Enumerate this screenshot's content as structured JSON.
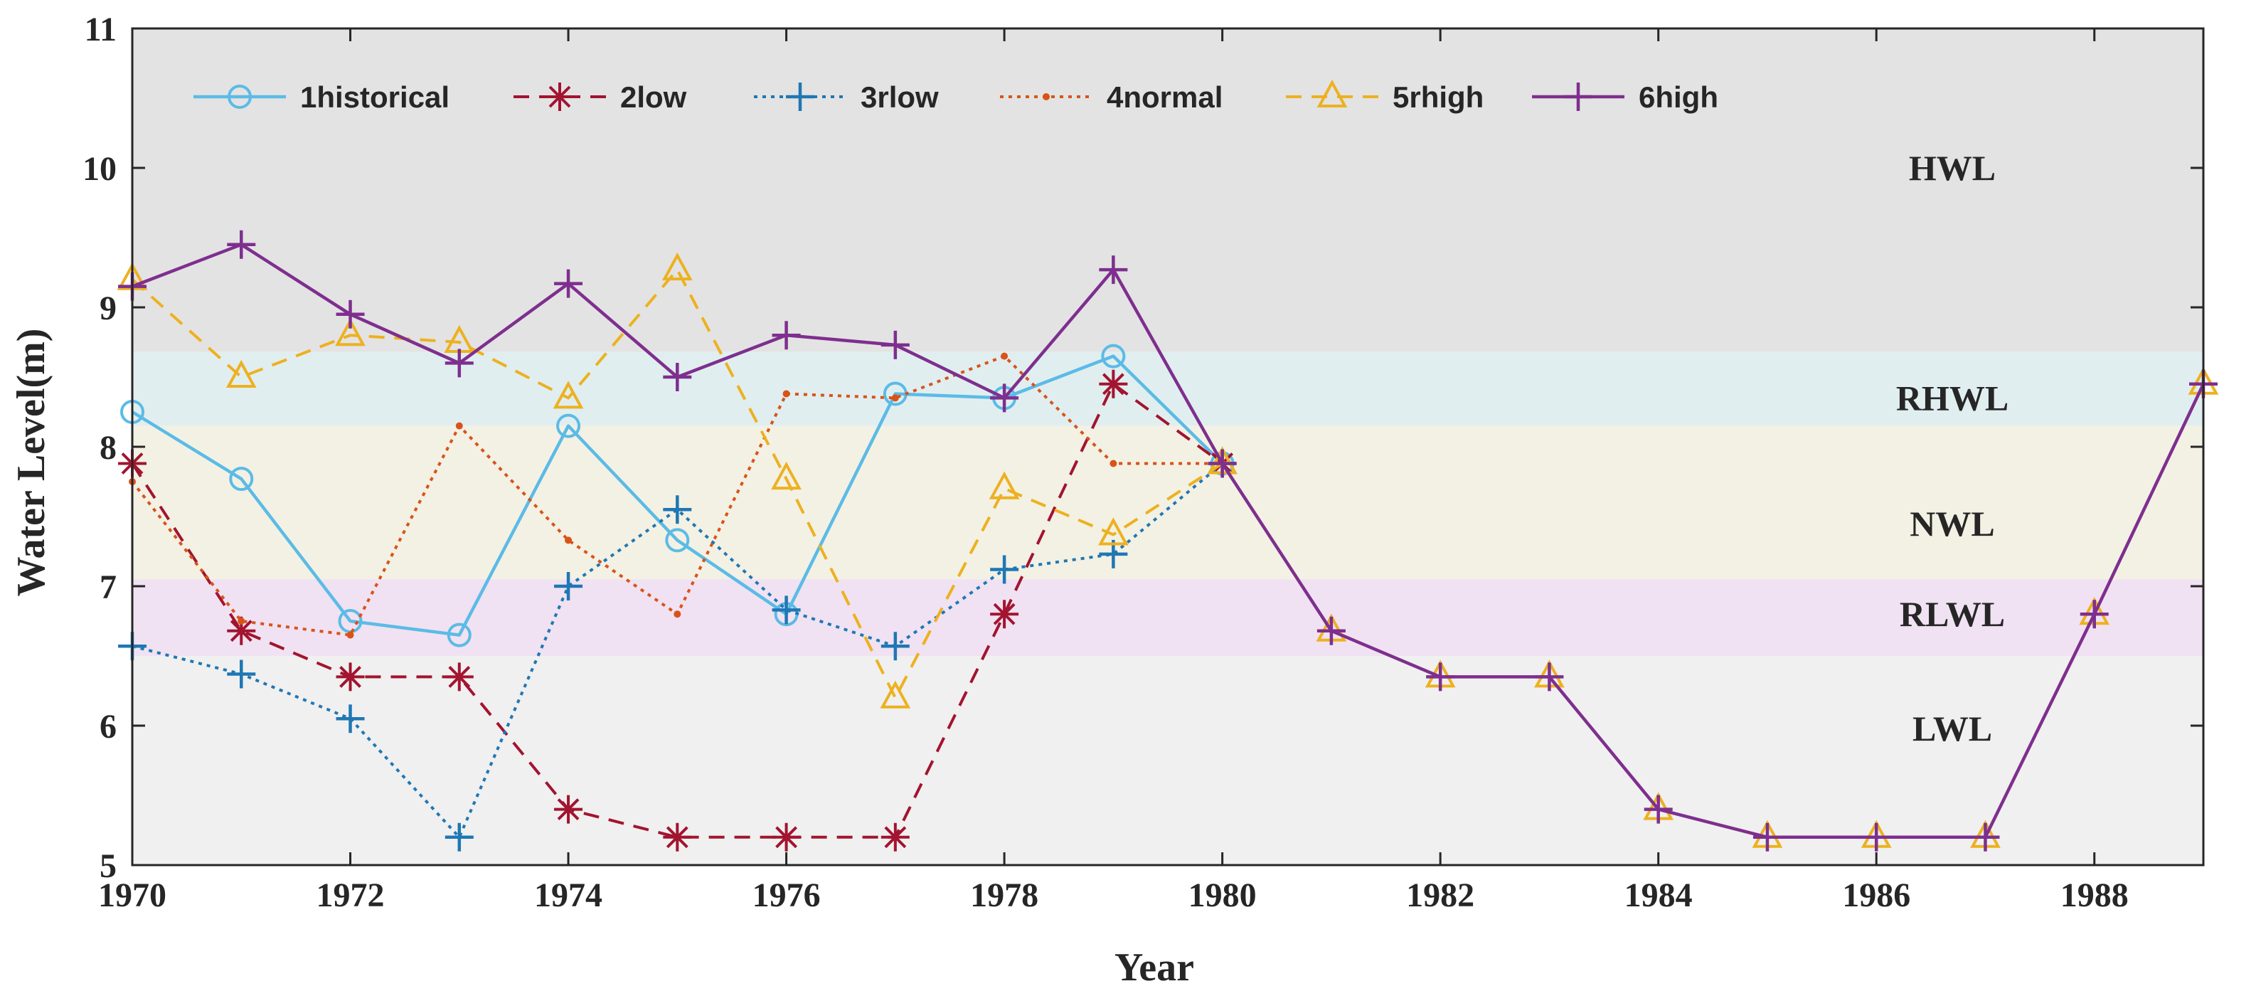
{
  "chart_data": {
    "type": "line",
    "xlabel": "Year",
    "ylabel": "Water Level(m)",
    "xlim": [
      1970,
      1989
    ],
    "ylim": [
      5,
      11
    ],
    "x_ticks": [
      "1970",
      "1972",
      "1974",
      "1976",
      "1978",
      "1980",
      "1982",
      "1984",
      "1986",
      "1988"
    ],
    "y_ticks": [
      "5",
      "6",
      "7",
      "8",
      "9",
      "10",
      "11"
    ],
    "grid": false,
    "legend_position": "top-left, horizontal",
    "bands": [
      {
        "label": "HWL",
        "y0": 8.68,
        "y1": 11,
        "color": "#e3e3e3"
      },
      {
        "label": "RHWL",
        "y0": 8.15,
        "y1": 8.68,
        "color": "#e1eef0"
      },
      {
        "label": "NWL",
        "y0": 7.05,
        "y1": 8.15,
        "color": "#f3f1e4"
      },
      {
        "label": "RLWL",
        "y0": 6.5,
        "y1": 7.05,
        "color": "#f0e2f2"
      },
      {
        "label": "LWL",
        "y0": 5,
        "y1": 6.5,
        "color": "#f0f0f0"
      }
    ],
    "x": [
      1970,
      1971,
      1972,
      1973,
      1974,
      1975,
      1976,
      1977,
      1978,
      1979,
      1980,
      1981,
      1982,
      1983,
      1984,
      1985,
      1986,
      1987,
      1988,
      1989
    ],
    "series": [
      {
        "name": "1historical",
        "color": "#5bbbe6",
        "dash": "none",
        "marker": "circle",
        "x": [
          1970,
          1971,
          1972,
          1973,
          1974,
          1975,
          1976,
          1977,
          1978,
          1979,
          1980
        ],
        "values": [
          8.25,
          7.77,
          6.75,
          6.65,
          8.15,
          7.33,
          6.8,
          8.38,
          8.35,
          8.65,
          7.88
        ]
      },
      {
        "name": "2low",
        "color": "#a2142f",
        "dash": "dashed",
        "marker": "asterisk",
        "x": [
          1970,
          1971,
          1972,
          1973,
          1974,
          1975,
          1976,
          1977,
          1978,
          1979,
          1980
        ],
        "values": [
          7.88,
          6.68,
          6.35,
          6.35,
          5.4,
          5.2,
          5.2,
          5.2,
          6.8,
          8.45,
          7.88
        ]
      },
      {
        "name": "3rlow",
        "color": "#1f77b4",
        "dash": "dotted",
        "marker": "plus",
        "x": [
          1970,
          1971,
          1972,
          1973,
          1974,
          1975,
          1976,
          1977,
          1978,
          1979,
          1980
        ],
        "values": [
          6.57,
          6.37,
          6.05,
          5.2,
          7.0,
          7.55,
          6.83,
          6.57,
          7.12,
          7.23,
          7.88
        ]
      },
      {
        "name": "4normal",
        "color": "#d95319",
        "dash": "dotted",
        "marker": "dot",
        "x": [
          1970,
          1971,
          1972,
          1973,
          1974,
          1975,
          1976,
          1977,
          1978,
          1979,
          1980
        ],
        "values": [
          7.75,
          6.75,
          6.65,
          8.15,
          7.33,
          6.8,
          8.38,
          8.35,
          8.65,
          7.88,
          7.88
        ]
      },
      {
        "name": "5rhigh",
        "color": "#edb120",
        "dash": "dashed",
        "marker": "triangle",
        "x": [
          1970,
          1971,
          1972,
          1973,
          1974,
          1975,
          1976,
          1977,
          1978,
          1979,
          1980,
          1981,
          1982,
          1983,
          1984,
          1985,
          1986,
          1987,
          1988,
          1989
        ],
        "values": [
          9.2,
          8.5,
          8.8,
          8.75,
          8.35,
          9.27,
          7.77,
          6.2,
          7.7,
          7.37,
          7.88,
          6.68,
          6.35,
          6.35,
          5.4,
          5.2,
          5.2,
          5.2,
          6.8,
          8.45
        ]
      },
      {
        "name": "6high",
        "color": "#7e2f8e",
        "dash": "none",
        "marker": "plus",
        "x": [
          1970,
          1971,
          1972,
          1973,
          1974,
          1975,
          1976,
          1977,
          1978,
          1979,
          1980,
          1981,
          1982,
          1983,
          1984,
          1985,
          1986,
          1987,
          1988,
          1989
        ],
        "values": [
          9.15,
          9.45,
          8.95,
          8.6,
          9.17,
          8.5,
          8.8,
          8.73,
          8.35,
          9.27,
          7.88,
          6.68,
          6.35,
          6.35,
          5.4,
          5.2,
          5.2,
          5.2,
          6.8,
          8.45
        ]
      }
    ]
  }
}
